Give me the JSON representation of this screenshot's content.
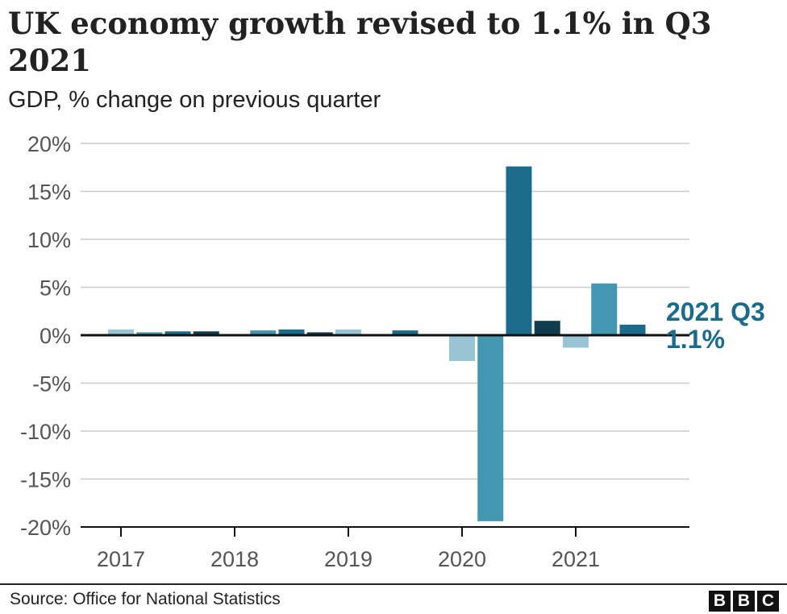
{
  "title": "UK economy growth revised to 1.1% in Q3 2021",
  "subtitle": "GDP, % change on previous quarter",
  "source": "Source: Office for National Statistics",
  "logo": "BBC",
  "chart_data": {
    "type": "bar",
    "title": "UK economy growth revised to 1.1% in Q3 2021",
    "ylabel": "GDP, % change on previous quarter",
    "ylim": [
      -20,
      20
    ],
    "yticks": [
      20,
      15,
      10,
      5,
      0,
      -5,
      -10,
      -15,
      -20
    ],
    "ytick_labels": [
      "20%",
      "15%",
      "10%",
      "5%",
      "0%",
      "-5%",
      "-10%",
      "-15%",
      "-20%"
    ],
    "xtick_labels": [
      "2017",
      "2018",
      "2019",
      "2020",
      "2021"
    ],
    "grid": true,
    "categories": [
      "2017 Q1",
      "2017 Q2",
      "2017 Q3",
      "2017 Q4",
      "2018 Q1",
      "2018 Q2",
      "2018 Q3",
      "2018 Q4",
      "2019 Q1",
      "2019 Q2",
      "2019 Q3",
      "2019 Q4",
      "2020 Q1",
      "2020 Q2",
      "2020 Q3",
      "2020 Q4",
      "2021 Q1",
      "2021 Q2",
      "2021 Q3"
    ],
    "values": [
      0.6,
      0.3,
      0.4,
      0.4,
      0.1,
      0.5,
      0.6,
      0.3,
      0.6,
      0.0,
      0.5,
      0.0,
      -2.7,
      -19.4,
      17.6,
      1.5,
      -1.3,
      5.4,
      1.1
    ],
    "quarter_colors": [
      "#98c4d4",
      "#4397b0",
      "#1a6b8c",
      "#0f3d4e"
    ],
    "annotation": {
      "label": "2021 Q3",
      "value": "1.1%",
      "color": "#1a6b8c"
    }
  }
}
